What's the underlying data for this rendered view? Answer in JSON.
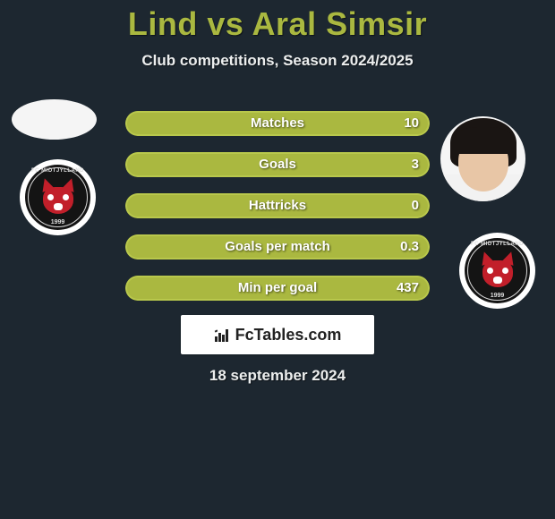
{
  "title": "Lind vs Aral Simsir",
  "subtitle": "Club competitions, Season 2024/2025",
  "date": "18 september 2024",
  "brand": "FcTables.com",
  "colors": {
    "accent": "#aab840",
    "accent_border": "#b9c84c",
    "bg": "#1d2730",
    "text": "#ffffff",
    "badge_red": "#c21f2a"
  },
  "badge": {
    "top_text": "FC MIDTJYLLAND",
    "year": "1999"
  },
  "bars": {
    "bar_bg_track": "#1d2730",
    "fill_color": "#aab840",
    "border_color": "#b9c84c",
    "label_fontsize": 15,
    "value_fontsize": 15,
    "rows": [
      {
        "label": "Matches",
        "value": "10",
        "fill_pct": 100
      },
      {
        "label": "Goals",
        "value": "3",
        "fill_pct": 100
      },
      {
        "label": "Hattricks",
        "value": "0",
        "fill_pct": 100
      },
      {
        "label": "Goals per match",
        "value": "0.3",
        "fill_pct": 100
      },
      {
        "label": "Min per goal",
        "value": "437",
        "fill_pct": 100
      }
    ]
  }
}
